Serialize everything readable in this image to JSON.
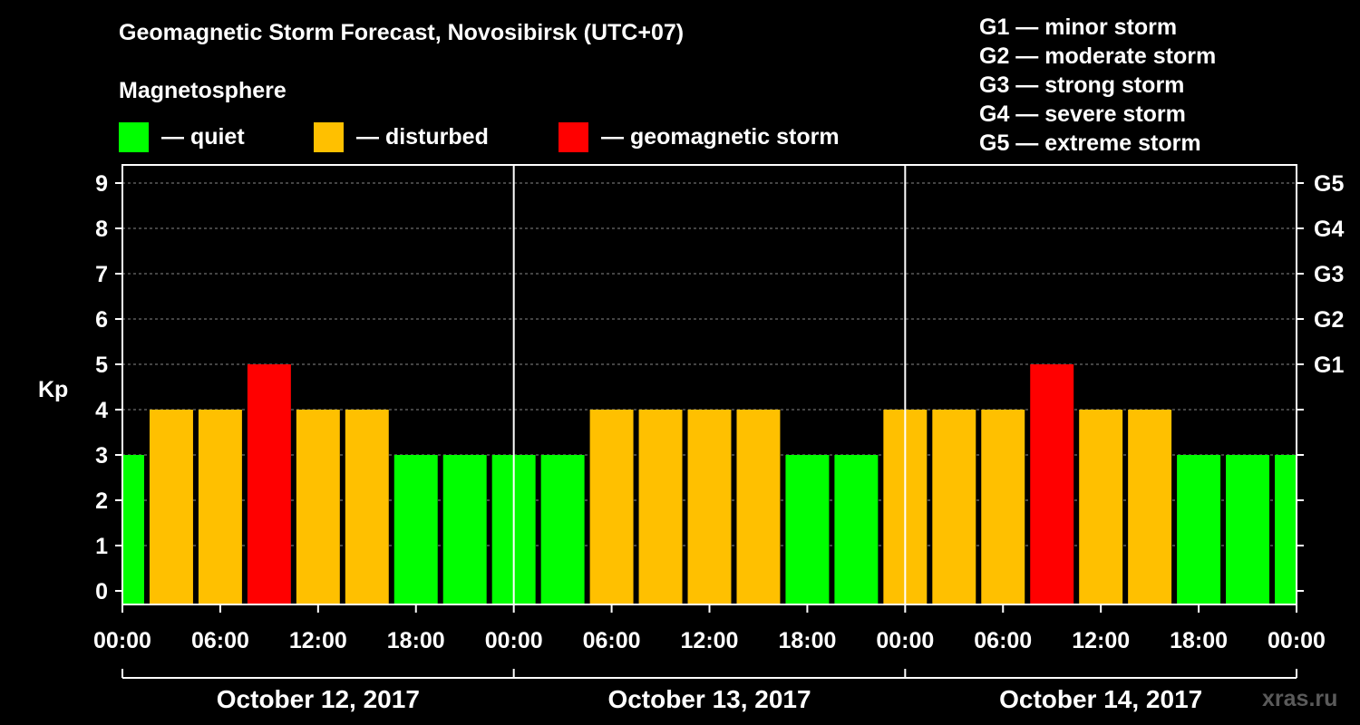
{
  "title": "Geomagnetic Storm Forecast, Novosibirsk (UTC+07)",
  "magnetosphere_label": "Magnetosphere",
  "legend": [
    {
      "label": "— quiet",
      "color": "#00ff00"
    },
    {
      "label": "— disturbed",
      "color": "#ffc000"
    },
    {
      "label": "— geomagnetic storm",
      "color": "#ff0000"
    }
  ],
  "g_scale": [
    "G1 — minor storm",
    "G2 — moderate storm",
    "G3 — strong storm",
    "G4 — severe storm",
    "G5 — extreme storm"
  ],
  "watermark": "xras.ru",
  "chart_data": {
    "type": "bar",
    "ylabel": "Kp",
    "ylim": [
      0,
      9
    ],
    "yticks": [
      "0",
      "1",
      "2",
      "3",
      "4",
      "5",
      "6",
      "7",
      "8",
      "9"
    ],
    "right_axis_labels": [
      {
        "kp": 5,
        "label": "G1"
      },
      {
        "kp": 6,
        "label": "G2"
      },
      {
        "kp": 7,
        "label": "G3"
      },
      {
        "kp": 8,
        "label": "G4"
      },
      {
        "kp": 9,
        "label": "G5"
      }
    ],
    "grid": true,
    "x_tick_labels": [
      "00:00",
      "06:00",
      "12:00",
      "18:00",
      "00:00",
      "06:00",
      "12:00",
      "18:00",
      "00:00",
      "06:00",
      "12:00",
      "18:00",
      "00:00"
    ],
    "days": [
      "October 12, 2017",
      "October 13, 2017",
      "October 14, 2017"
    ],
    "values": [
      3,
      4,
      4,
      5,
      4,
      4,
      3,
      3,
      3,
      3,
      4,
      4,
      4,
      4,
      3,
      3,
      4,
      4,
      4,
      5,
      4,
      4,
      3,
      3,
      3
    ],
    "colors": {
      "quiet": "#00ff00",
      "disturbed": "#ffc000",
      "storm": "#ff0000"
    }
  }
}
